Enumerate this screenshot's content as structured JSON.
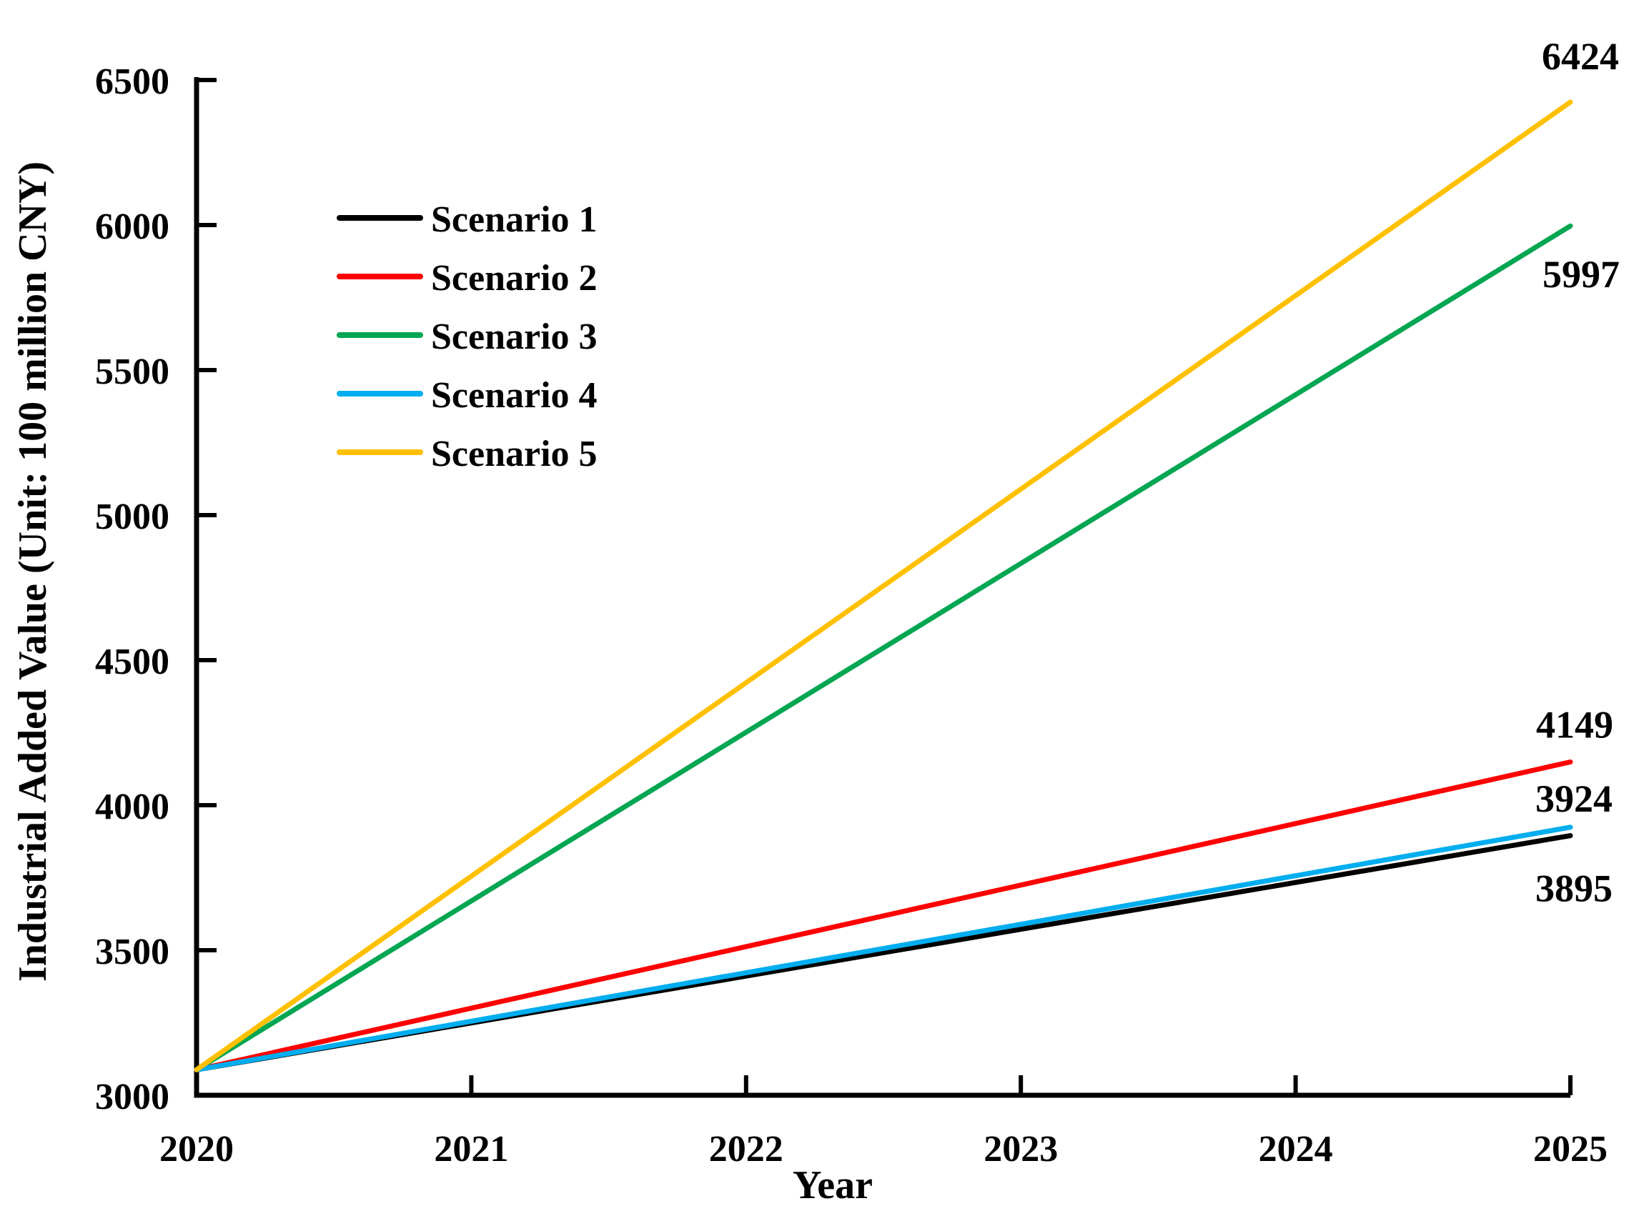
{
  "figure": {
    "background_color": "#FFFFFF",
    "axis_color": "#000000",
    "tick_label_color": "#000000"
  },
  "chart_data": {
    "type": "line",
    "title": "",
    "xlabel": "Year",
    "ylabel": "Industrial Added Value（Unit: 100 million CNY）",
    "xlim": [
      2020,
      2025
    ],
    "ylim": [
      3000,
      6500
    ],
    "x_ticks": [
      2020,
      2021,
      2022,
      2023,
      2024,
      2025
    ],
    "x_tick_labels": [
      "2020",
      "2021",
      "2022",
      "2023",
      "2024",
      "2025"
    ],
    "y_ticks": [
      3000,
      3500,
      4000,
      4500,
      5000,
      5500,
      6000,
      6500
    ],
    "y_tick_labels": [
      "3000",
      "3500",
      "4000",
      "4500",
      "5000",
      "5500",
      "6000",
      "6500"
    ],
    "grid": false,
    "legend_position": "upper-left-inside",
    "series": [
      {
        "name": "Scenario 1",
        "color": "#000000",
        "x": [
          2020,
          2025
        ],
        "values": [
          3088,
          3895
        ],
        "end_label": "3895",
        "end_label_color": "#000000"
      },
      {
        "name": "Scenario 2",
        "color": "#FF0000",
        "x": [
          2020,
          2025
        ],
        "values": [
          3088,
          4149
        ],
        "end_label": "4149",
        "end_label_color": "#FF0000"
      },
      {
        "name": "Scenario 3",
        "color": "#00A651",
        "x": [
          2020,
          2025
        ],
        "values": [
          3088,
          5997
        ],
        "end_label": "5997",
        "end_label_color": "#00A651"
      },
      {
        "name": "Scenario 4",
        "color": "#00AEEF",
        "x": [
          2020,
          2025
        ],
        "values": [
          3088,
          3924
        ],
        "end_label": "3924",
        "end_label_color": "#00AEEF"
      },
      {
        "name": "Scenario 5",
        "color": "#FFC000",
        "x": [
          2020,
          2025
        ],
        "values": [
          3088,
          6424
        ],
        "end_label": "6424",
        "end_label_color": "#FFC000"
      }
    ],
    "legend_entries": [
      "Scenario 1",
      "Scenario 2",
      "Scenario 3",
      "Scenario 4",
      "Scenario 5"
    ]
  }
}
